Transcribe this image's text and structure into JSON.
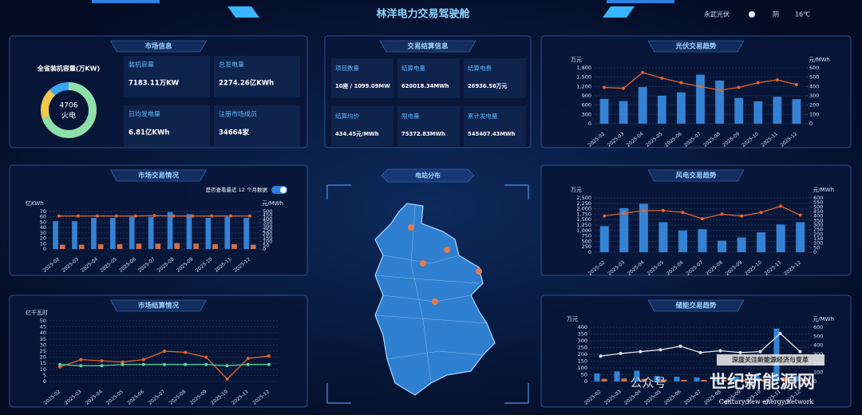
{
  "header": {
    "title": "林洋电力交易驾驶舱",
    "location": "永武光伏",
    "weather": "阴",
    "temperature": "16℃"
  },
  "market_info": {
    "title": "市场信息",
    "capacity_label": "全省装机容量(万KW)",
    "donut": {
      "center_value": "4706",
      "center_label": "火电",
      "values": [
        70,
        18,
        12
      ],
      "colors": [
        "#8fe0a8",
        "#f2c94c",
        "#38a8f0"
      ]
    },
    "items": [
      {
        "label": "装机容量",
        "value": "7183.11万KW"
      },
      {
        "label": "总发电量",
        "value": "2274.26亿KWh"
      },
      {
        "label": "日均发电量",
        "value": "6.81亿KWh"
      },
      {
        "label": "注册市场成员",
        "value": "34664家"
      }
    ]
  },
  "settlement_info": {
    "title": "交易结算信息",
    "items": [
      {
        "label": "项目数量",
        "value": "10座 / 1099.09MW"
      },
      {
        "label": "结算电量",
        "value": "620018.34MWh"
      },
      {
        "label": "结算电费",
        "value": "26936.56万元"
      },
      {
        "label": "结算均价",
        "value": "434.45元/MWh"
      },
      {
        "label": "限电量",
        "value": "75372.83MWh"
      },
      {
        "label": "累计发电量",
        "value": "545407.43MWh"
      }
    ]
  },
  "map": {
    "title": "电站分布"
  },
  "watermark": {
    "slogan": "深度关注新能源经济与变革",
    "brand": "世纪新能源网",
    "brand_en": "Century new energy network",
    "account": "公众号"
  },
  "chart_data": [
    {
      "type": "combo",
      "title": "光伏交易趋势",
      "ylabel": "万元",
      "y2label": "元/MWh",
      "categories": [
        "2025-02",
        "2025-03",
        "2025-04",
        "2025-05",
        "2025-06",
        "2025-07",
        "2025-08",
        "2025-09",
        "2025-10",
        "2025-11",
        "2025-12"
      ],
      "ylim": [
        0,
        1800
      ],
      "yticks": [
        0,
        300,
        600,
        900,
        {
          "value": 1200,
          "label": "1,200"
        },
        {
          "value": 1500,
          "label": "1,500"
        },
        {
          "value": 1800,
          "label": "1,800"
        }
      ],
      "y2lim": [
        0,
        600
      ],
      "y2ticks": [
        0,
        100,
        200,
        300,
        400,
        500,
        600
      ],
      "grid": true,
      "series": [
        {
          "kind": "bar",
          "color": "#3a8ee6",
          "values": [
            800,
            730,
            1180,
            900,
            1010,
            1580,
            1390,
            830,
            720,
            870,
            790
          ]
        },
        {
          "kind": "line",
          "axis": "y2",
          "color": "#e8632a",
          "values": [
            390,
            380,
            550,
            490,
            440,
            400,
            360,
            390,
            440,
            470,
            420
          ]
        }
      ]
    },
    {
      "type": "combo",
      "title": "市场交易情况",
      "ylabel": "亿KWh",
      "y2label": "元/MWh",
      "toggle_label": "是否查看最近 12 个月数据",
      "categories": [
        "2025-02",
        "2025-03",
        "2025-04",
        "2025-05",
        "2025-06",
        "2025-07",
        "2025-08",
        "2025-09",
        "2025-10",
        "2025-11",
        "2025-12"
      ],
      "ylim": [
        0,
        70
      ],
      "yticks": [
        0,
        10,
        20,
        30,
        40,
        50,
        60,
        70
      ],
      "y2lim": [
        0,
        500
      ],
      "y2ticks": [
        0,
        50,
        100,
        150,
        200,
        250,
        300,
        350,
        400,
        450,
        500
      ],
      "grid": true,
      "series": [
        {
          "kind": "bar",
          "color": "#3a8ee6",
          "values": [
            52,
            52,
            58,
            58,
            60,
            60,
            69,
            65,
            58,
            60,
            58
          ]
        },
        {
          "kind": "bar",
          "color": "#e8794a",
          "values": [
            8,
            8,
            9,
            9,
            10,
            10,
            11,
            10,
            9,
            9,
            8
          ]
        },
        {
          "kind": "line",
          "axis": "y2",
          "color": "#e8632a",
          "values": [
            440,
            440,
            440,
            440,
            440,
            445,
            440,
            440,
            440,
            440,
            440
          ]
        }
      ]
    },
    {
      "type": "line",
      "title": "市场结算情况",
      "ylabel": "亿千瓦时",
      "categories": [
        "2025-02",
        "2025-03",
        "2025-04",
        "2025-05",
        "2025-06",
        "2025-07",
        "2025-08",
        "2025-09",
        "2025-10",
        "2025-11",
        "2025-12"
      ],
      "ylim": [
        0,
        50
      ],
      "yticks": [
        0,
        5,
        10,
        15,
        20,
        25,
        30,
        35,
        40,
        45,
        50
      ],
      "grid": true,
      "series": [
        {
          "kind": "line",
          "color": "#e8632a",
          "values": [
            12,
            18,
            17,
            16,
            18,
            25,
            24,
            20,
            2,
            19,
            21
          ]
        },
        {
          "kind": "line",
          "color": "#5ed6a0",
          "values": [
            14,
            13,
            13,
            14,
            14,
            14,
            14,
            14,
            13,
            14,
            14
          ]
        }
      ]
    },
    {
      "type": "combo",
      "title": "风电交易趋势",
      "ylabel": "万元",
      "y2label": "元/MWh",
      "categories": [
        "2025-02",
        "2025-03",
        "2025-04",
        "2025-05",
        "2025-06",
        "2025-07",
        "2025-08",
        "2025-09",
        "2025-10",
        "2025-11",
        "2025-12"
      ],
      "ylim": [
        0,
        2500
      ],
      "yticks": [
        0,
        250,
        500,
        750,
        {
          "value": 1000,
          "label": "1,000"
        },
        {
          "value": 1250,
          "label": "1,250"
        },
        {
          "value": 1500,
          "label": "1,500"
        },
        {
          "value": 1750,
          "label": "1,750"
        },
        {
          "value": 2000,
          "label": "2,000"
        },
        {
          "value": 2250,
          "label": "2,250"
        },
        {
          "value": 2500,
          "label": "2,500"
        }
      ],
      "y2lim": [
        0,
        600
      ],
      "y2ticks": [
        0,
        50,
        100,
        150,
        200,
        250,
        300,
        350,
        400,
        450,
        500,
        550,
        600
      ],
      "grid": true,
      "series": [
        {
          "kind": "bar",
          "color": "#3a8ee6",
          "values": [
            1200,
            2030,
            2230,
            1380,
            1000,
            1060,
            530,
            680,
            920,
            1280,
            1380
          ]
        },
        {
          "kind": "line",
          "axis": "y2",
          "color": "#e8632a",
          "values": [
            400,
            430,
            460,
            460,
            440,
            370,
            420,
            400,
            440,
            510,
            410
          ]
        }
      ]
    },
    {
      "type": "combo",
      "title": "储能交易趋势",
      "ylabel": "万元",
      "y2label": "元/MWh",
      "categories": [
        "2025-02",
        "2025-03",
        "2025-04",
        "2025-05",
        "2025-06",
        "2025-07",
        "2025-08",
        "2025-09",
        "2025-10",
        "2025-11",
        "2025-12"
      ],
      "ylim": [
        0,
        400
      ],
      "yticks": [
        0,
        50,
        100,
        150,
        200,
        250,
        300,
        350,
        400
      ],
      "y2lim": [
        0,
        600
      ],
      "y2ticks": [
        0,
        100,
        200,
        300,
        400,
        500,
        600
      ],
      "grid": true,
      "series": [
        {
          "kind": "bar",
          "color": "#3a8ee6",
          "values": [
            60,
            75,
            80,
            40,
            35,
            30,
            30,
            35,
            45,
            390,
            40
          ]
        },
        {
          "kind": "bar",
          "color": "#e8794a",
          "values": [
            20,
            22,
            20,
            15,
            12,
            12,
            12,
            14,
            15,
            30,
            14
          ]
        },
        {
          "kind": "line",
          "axis": "y2",
          "color": "#e6e6e6",
          "values": [
            280,
            310,
            330,
            350,
            390,
            320,
            340,
            320,
            330,
            530,
            330
          ]
        }
      ]
    }
  ]
}
